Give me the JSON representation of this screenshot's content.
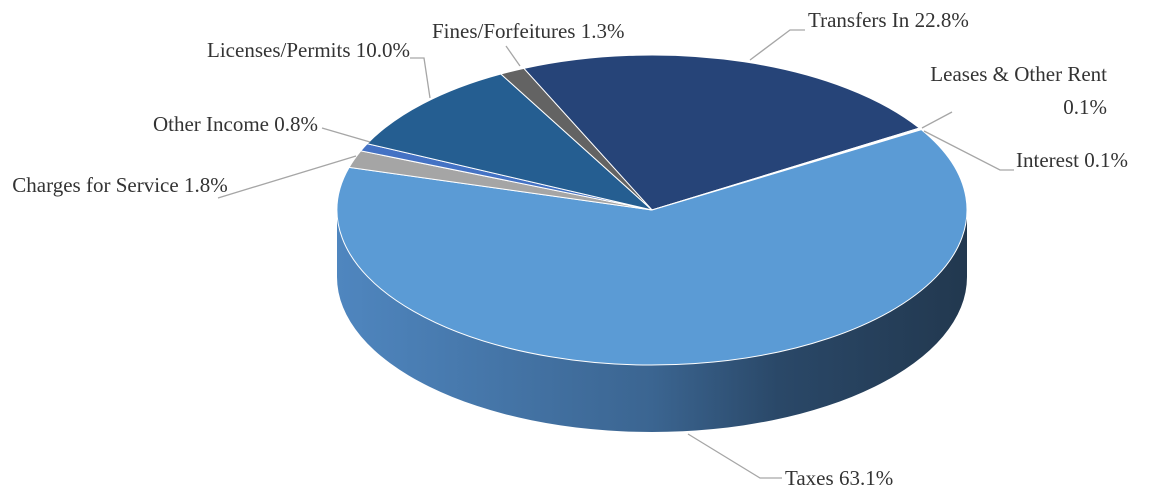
{
  "chart_data": {
    "type": "pie",
    "categories": [
      "Transfers In",
      "Leases & Other Rent",
      "Interest",
      "Taxes",
      "Charges for Service",
      "Other Income",
      "Licenses/Permits",
      "Fines/Forfeitures"
    ],
    "values": [
      22.8,
      0.1,
      0.1,
      63.1,
      1.8,
      0.8,
      10.0,
      1.3
    ],
    "value_labels": [
      "22.8%",
      "0.1%",
      "0.1%",
      "63.1%",
      "1.8%",
      "0.8%",
      "10.0%",
      "1.3%"
    ],
    "colors": [
      "#264478",
      "#9dc3e6",
      "#c9daf0",
      "#5b9bd5",
      "#a5a5a5",
      "#4472c4",
      "#255e91",
      "#636363"
    ]
  }
}
